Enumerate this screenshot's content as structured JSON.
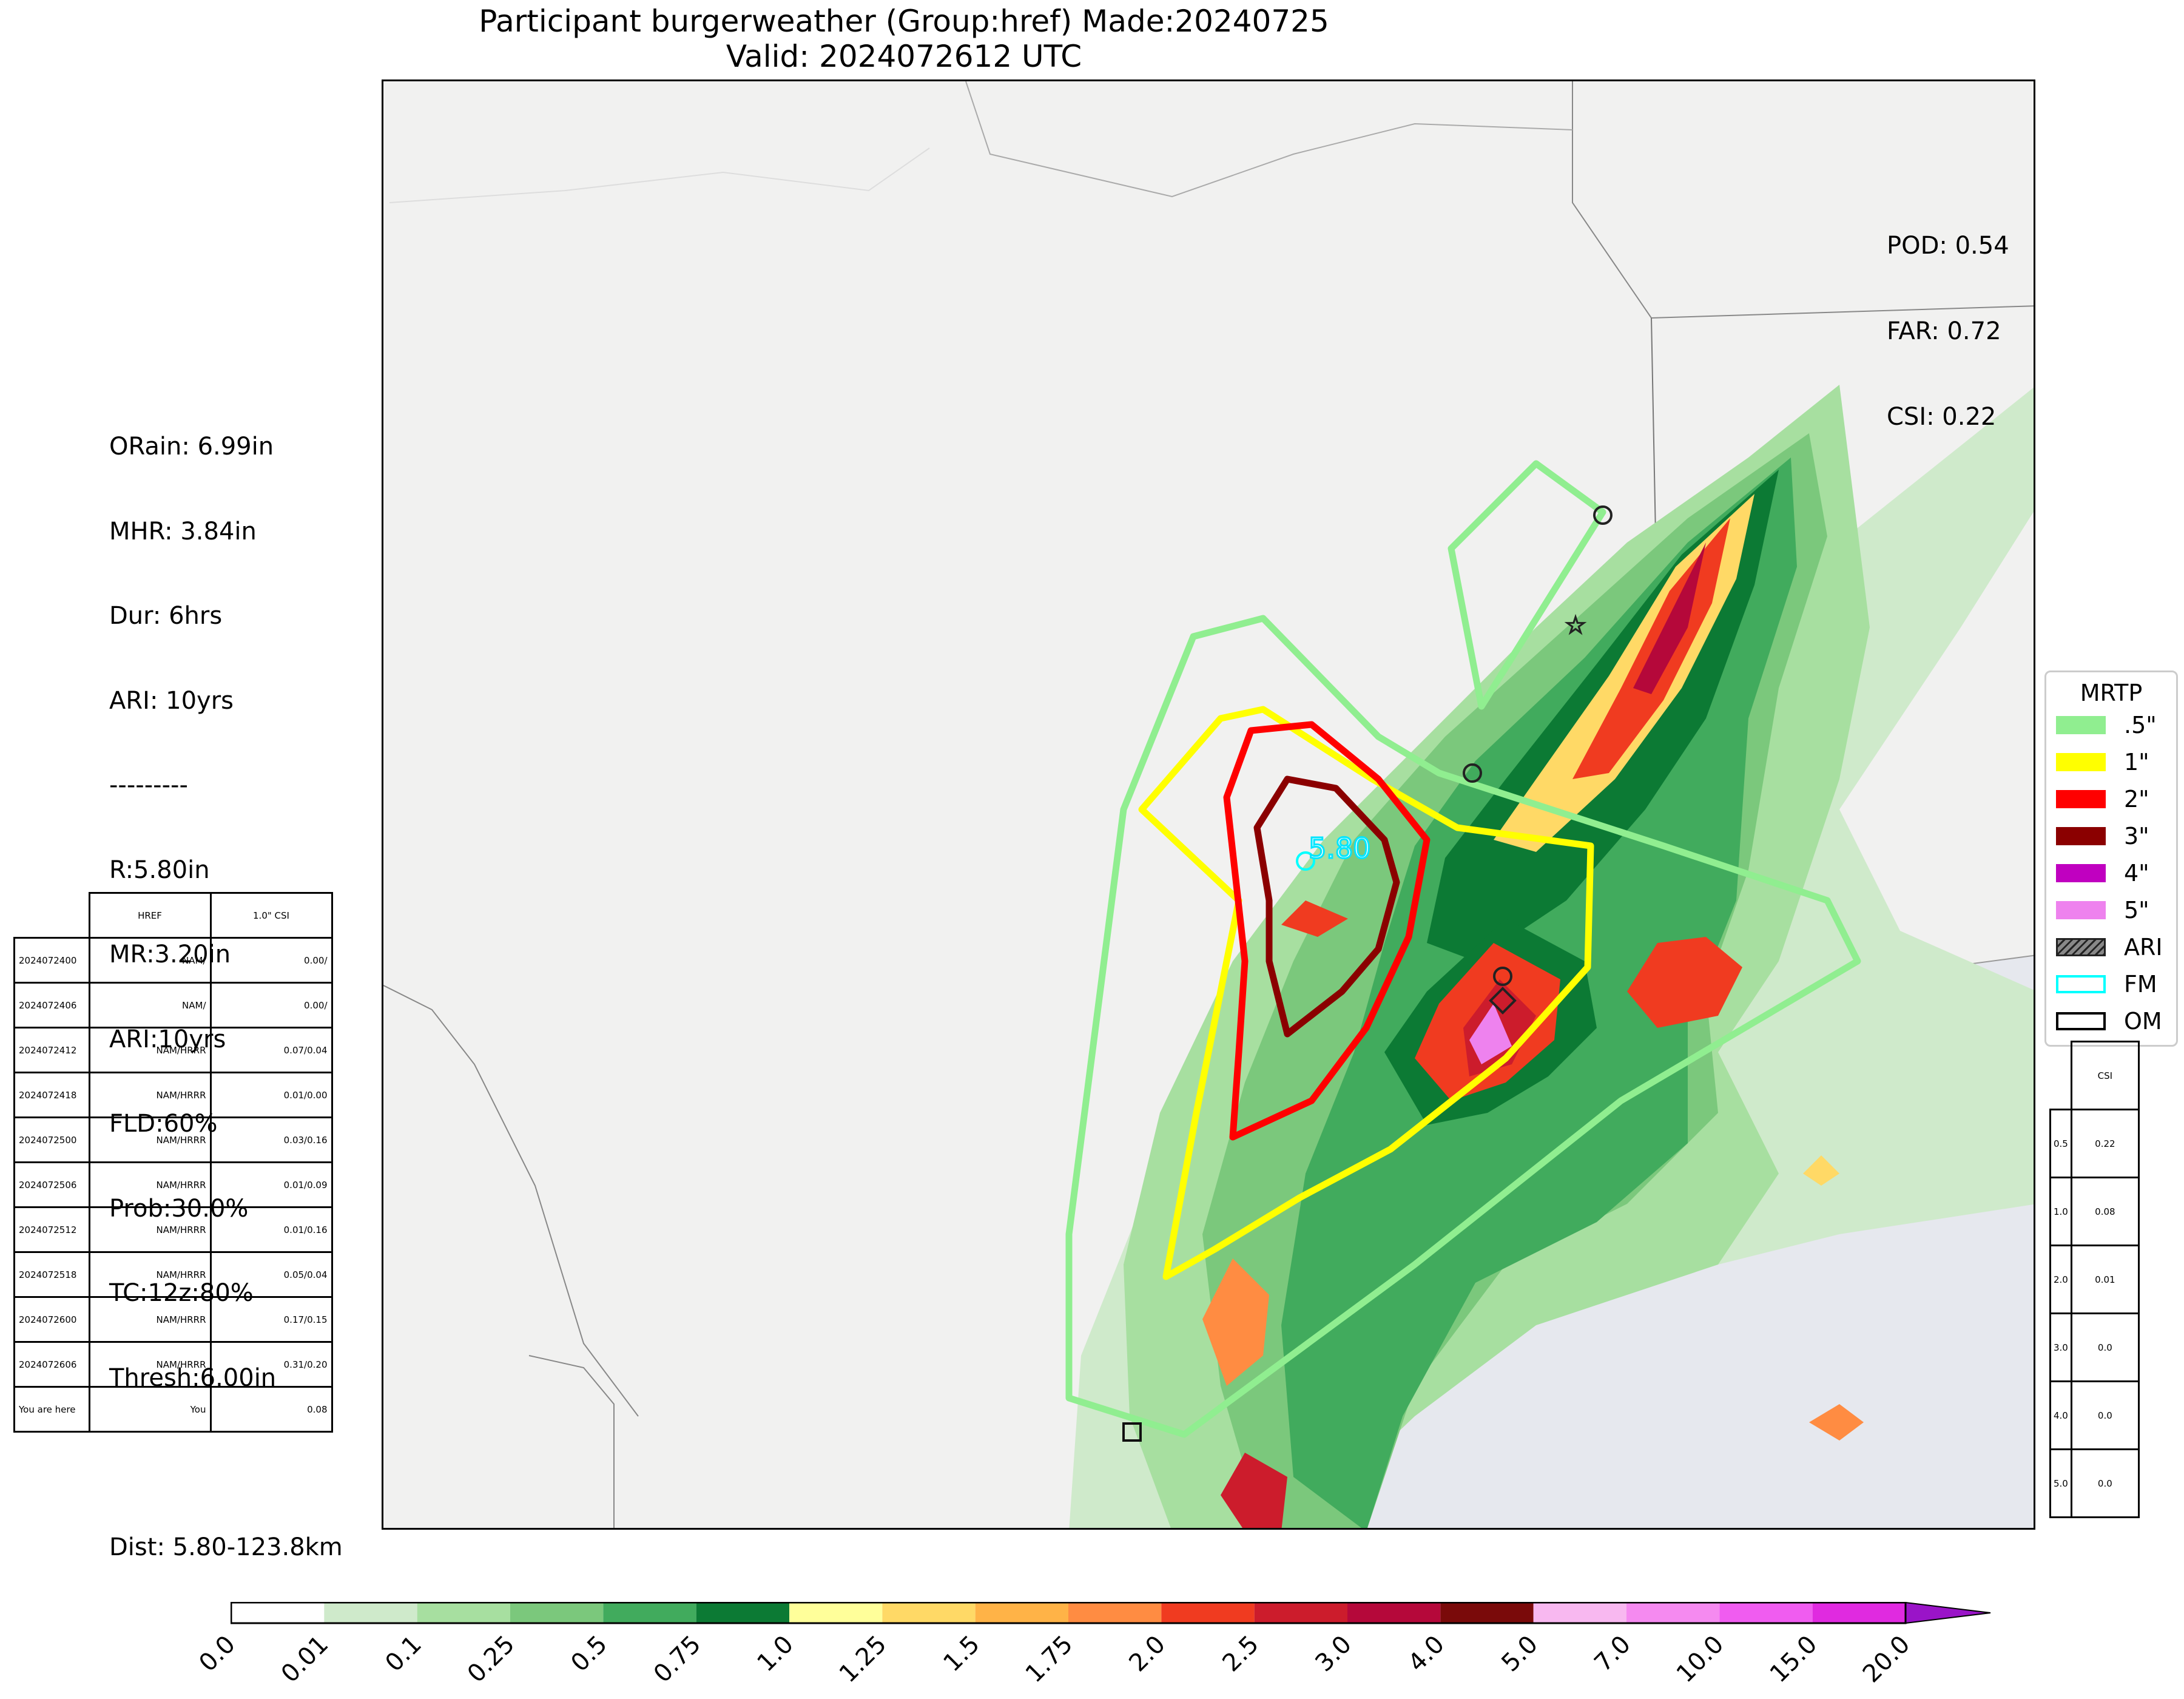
{
  "title": {
    "line1": "Participant burgerweather (Group:href) Made:20240725",
    "line2": "Valid: 2024072612 UTC"
  },
  "stats_left": {
    "lines": [
      "ORain: 6.99in",
      "MHR: 3.84in",
      "Dur: 6hrs",
      "ARI: 10yrs",
      "---------",
      "R:5.80in",
      "MR:3.20in",
      "ARI:10yrs",
      "FLD:60%",
      "Prob:30.0%",
      "TC:12z:80%",
      "Thresh:6.00in",
      "",
      "Dist: 5.80-123.8km"
    ]
  },
  "metrics": {
    "pod": "POD: 0.54",
    "far": "FAR: 0.72",
    "csi": "CSI: 0.22"
  },
  "map_label": "5.80",
  "run_table": {
    "headers": [
      "",
      "HREF",
      "1.0\" CSI"
    ],
    "rows": [
      [
        "2024072400",
        "NAM/",
        "0.00/"
      ],
      [
        "2024072406",
        "NAM/",
        "0.00/"
      ],
      [
        "2024072412",
        "NAM/HRRR",
        "0.07/0.04"
      ],
      [
        "2024072418",
        "NAM/HRRR",
        "0.01/0.00"
      ],
      [
        "2024072500",
        "NAM/HRRR",
        "0.03/0.16"
      ],
      [
        "2024072506",
        "NAM/HRRR",
        "0.01/0.09"
      ],
      [
        "2024072512",
        "NAM/HRRR",
        "0.01/0.16"
      ],
      [
        "2024072518",
        "NAM/HRRR",
        "0.05/0.04"
      ],
      [
        "2024072600",
        "NAM/HRRR",
        "0.17/0.15"
      ],
      [
        "2024072606",
        "NAM/HRRR",
        "0.31/0.20"
      ],
      [
        "You are here",
        "You",
        "0.08"
      ]
    ]
  },
  "legend": {
    "title": "MRTP",
    "items": [
      {
        "label": ".5\"",
        "color": "#90ee90",
        "kind": "fill"
      },
      {
        "label": "1\"",
        "color": "#ffff00",
        "kind": "fill"
      },
      {
        "label": "2\"",
        "color": "#ff0000",
        "kind": "fill"
      },
      {
        "label": "3\"",
        "color": "#8b0000",
        "kind": "fill"
      },
      {
        "label": "4\"",
        "color": "#c000c0",
        "kind": "fill"
      },
      {
        "label": "5\"",
        "color": "#ee82ee",
        "kind": "fill"
      },
      {
        "label": "ARI",
        "color": "#888888",
        "kind": "hatch"
      },
      {
        "label": "FM",
        "color": "#00ffff",
        "kind": "outline"
      },
      {
        "label": "OM",
        "color": "#000000",
        "kind": "outline"
      }
    ]
  },
  "csi_table": {
    "header": "CSI",
    "rows": [
      [
        "0.5",
        "0.22"
      ],
      [
        "1.0",
        "0.08"
      ],
      [
        "2.0",
        "0.01"
      ],
      [
        "3.0",
        "0.0"
      ],
      [
        "4.0",
        "0.0"
      ],
      [
        "5.0",
        "0.0"
      ]
    ]
  },
  "colorbar": {
    "ticks": [
      "0.0",
      "0.01",
      "0.1",
      "0.25",
      "0.5",
      "0.75",
      "1.0",
      "1.25",
      "1.5",
      "1.75",
      "2.0",
      "2.5",
      "3.0",
      "4.0",
      "5.0",
      "7.0",
      "10.0",
      "15.0",
      "20.0"
    ],
    "colors": [
      "#ffffff",
      "#cfeacb",
      "#a7dfa0",
      "#7bc87c",
      "#41ab5d",
      "#0c7a34",
      "#ffff9a",
      "#ffd966",
      "#ffb347",
      "#ff8c42",
      "#f03b20",
      "#cc1c2c",
      "#b5083a",
      "#7a0a0a",
      "#f8b8f0",
      "#f58af0",
      "#f05cf0",
      "#e02ae0",
      "#9a14c8"
    ]
  }
}
